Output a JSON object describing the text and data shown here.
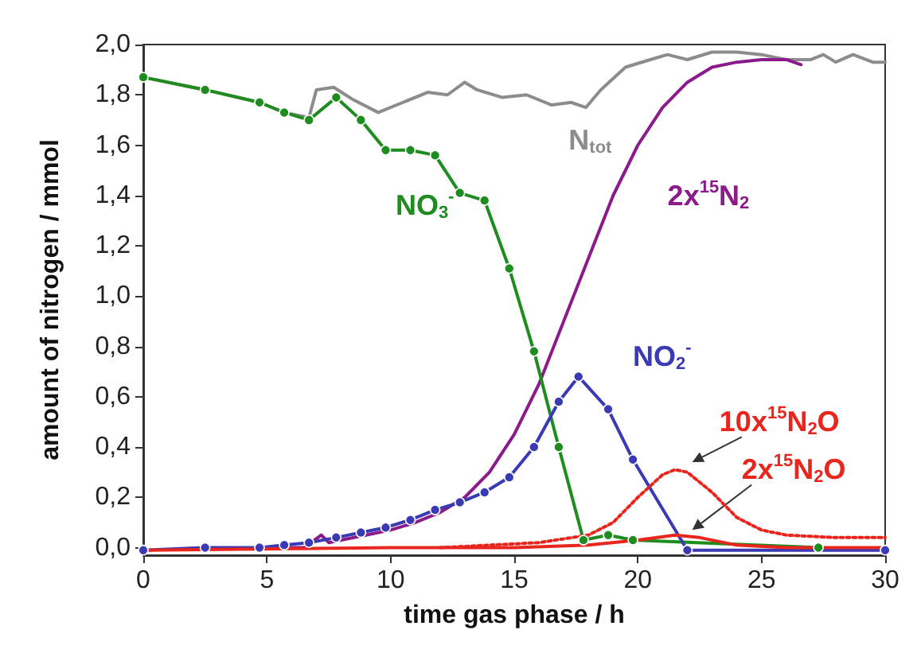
{
  "chart_data": {
    "type": "line",
    "xlabel": "time gas phase / h",
    "ylabel": "amount of nitrogen / mmol",
    "xlim": [
      0,
      30
    ],
    "xticks": [
      0,
      5,
      10,
      15,
      20,
      25,
      30
    ],
    "ylim": [
      -0.03,
      2.0
    ],
    "yticks": [
      {
        "value": 0,
        "label": "0,0"
      },
      {
        "value": 0.2,
        "label": "0,2"
      },
      {
        "value": 0.4,
        "label": "0,4"
      },
      {
        "value": 0.6,
        "label": "0,6"
      },
      {
        "value": 0.8,
        "label": "0,8"
      },
      {
        "value": 1.0,
        "label": "1,0"
      },
      {
        "value": 1.2,
        "label": "1,2"
      },
      {
        "value": 1.4,
        "label": "1,4"
      },
      {
        "value": 1.6,
        "label": "1,6"
      },
      {
        "value": 1.8,
        "label": "1,8"
      },
      {
        "value": 2.0,
        "label": "2,0"
      }
    ],
    "grid": false,
    "line_style": "solid",
    "series": [
      {
        "name": "N$_{tot}$",
        "color": "#8c8c8c",
        "marker": "none",
        "x": [
          0,
          2.5,
          4.7,
          5.7,
          6.7,
          7,
          7.7,
          8.5,
          9.5,
          10.5,
          11.5,
          12.3,
          13,
          13.5,
          14.5,
          15.5,
          16.5,
          17.3,
          17.9,
          18.5,
          19.5,
          20.5,
          21.2,
          22,
          23,
          24,
          25,
          26,
          27,
          27.5,
          28,
          28.7,
          29.5,
          30
        ],
        "values": [
          1.87,
          1.82,
          1.77,
          1.73,
          1.71,
          1.82,
          1.83,
          1.78,
          1.73,
          1.77,
          1.81,
          1.8,
          1.85,
          1.82,
          1.79,
          1.8,
          1.76,
          1.77,
          1.75,
          1.82,
          1.91,
          1.94,
          1.96,
          1.94,
          1.97,
          1.97,
          1.96,
          1.94,
          1.94,
          1.96,
          1.93,
          1.96,
          1.93,
          1.93
        ]
      },
      {
        "name": "2x$^{15}$N$_{2}$",
        "color": "#8b1a8b",
        "marker": "none",
        "x": [
          5.5,
          6.5,
          7.2,
          7.5,
          8,
          9,
          10,
          11,
          12,
          13,
          14,
          15,
          16,
          17,
          18,
          19,
          20,
          21,
          22,
          23,
          24,
          25,
          26,
          26.6
        ],
        "values": [
          0,
          0,
          0.05,
          0.02,
          0.03,
          0.05,
          0.07,
          0.1,
          0.14,
          0.2,
          0.3,
          0.45,
          0.65,
          0.9,
          1.15,
          1.4,
          1.6,
          1.75,
          1.85,
          1.91,
          1.93,
          1.94,
          1.94,
          1.92
        ]
      },
      {
        "name": "NO$_{3}$$^{-}$",
        "color": "#1e8c1e",
        "marker": "circle",
        "x": [
          0,
          2.5,
          4.7,
          5.7,
          6.7,
          7.8,
          8.8,
          9.8,
          10.8,
          11.8,
          12.8,
          13.8,
          14.8,
          15.8,
          16.8,
          17.8,
          18.8,
          19.8,
          27.3
        ],
        "values": [
          1.87,
          1.82,
          1.77,
          1.73,
          1.7,
          1.79,
          1.7,
          1.58,
          1.58,
          1.56,
          1.41,
          1.38,
          1.11,
          0.78,
          0.4,
          0.03,
          0.05,
          0.03,
          0
        ]
      },
      {
        "name": "NO$_{2}$$^{-}$",
        "color": "#3a3ab4",
        "marker": "circle",
        "x": [
          0,
          2.5,
          4.7,
          5.7,
          6.7,
          7.8,
          8.8,
          9.8,
          10.8,
          11.8,
          12.8,
          13.8,
          14.8,
          15.8,
          16.8,
          17.6,
          18.8,
          19.8,
          22,
          30
        ],
        "values": [
          -0.01,
          0,
          0,
          0.01,
          0.02,
          0.04,
          0.06,
          0.08,
          0.11,
          0.15,
          0.18,
          0.22,
          0.28,
          0.4,
          0.58,
          0.68,
          0.55,
          0.35,
          -0.01,
          -0.01
        ]
      },
      {
        "name": "10x$^{15}$N$_{2}$O",
        "color": "#e8261e",
        "marker": "none",
        "line_style": "dotted",
        "x": [
          12,
          14,
          16,
          18,
          19,
          20,
          21,
          21.5,
          22,
          23,
          24,
          25,
          26,
          28,
          30
        ],
        "values": [
          0,
          0.01,
          0.02,
          0.05,
          0.1,
          0.2,
          0.29,
          0.31,
          0.3,
          0.22,
          0.12,
          0.07,
          0.05,
          0.04,
          0.04
        ]
      },
      {
        "name": "2x$^{15}$N$_{2}$O",
        "color": "#e8261e",
        "marker": "none",
        "x": [
          0,
          10,
          15,
          18,
          20,
          21.5,
          22.5,
          24,
          26,
          30
        ],
        "values": [
          -0.01,
          0,
          0,
          0.01,
          0.03,
          0.05,
          0.04,
          0.01,
          0,
          0
        ]
      }
    ]
  }
}
